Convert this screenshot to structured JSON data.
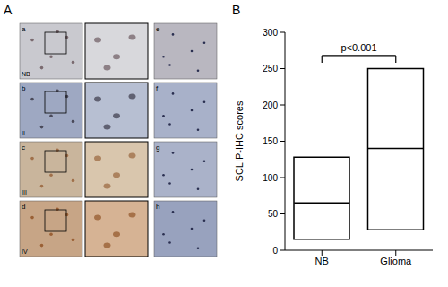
{
  "panel_labels": [
    "A",
    "B"
  ],
  "images": [
    {
      "label": "a",
      "group": "NB"
    },
    {
      "label": "b",
      "group": "II"
    },
    {
      "label": "c",
      "group": "III"
    },
    {
      "label": "d",
      "group": "IV"
    },
    {
      "label": "e"
    },
    {
      "label": "f"
    },
    {
      "label": "g"
    },
    {
      "label": "h"
    }
  ],
  "chart_data": {
    "type": "box",
    "ylabel": "SCLIP-IHC scores",
    "categories": [
      "NB",
      "Glioma"
    ],
    "low": [
      15,
      28
    ],
    "median": [
      65,
      140
    ],
    "high": [
      128,
      250
    ],
    "ylim": [
      0,
      300
    ],
    "yticks": [
      0,
      50,
      100,
      150,
      200,
      250,
      300
    ],
    "grid": false,
    "annotation": "p<0.001",
    "color": "#000000"
  }
}
